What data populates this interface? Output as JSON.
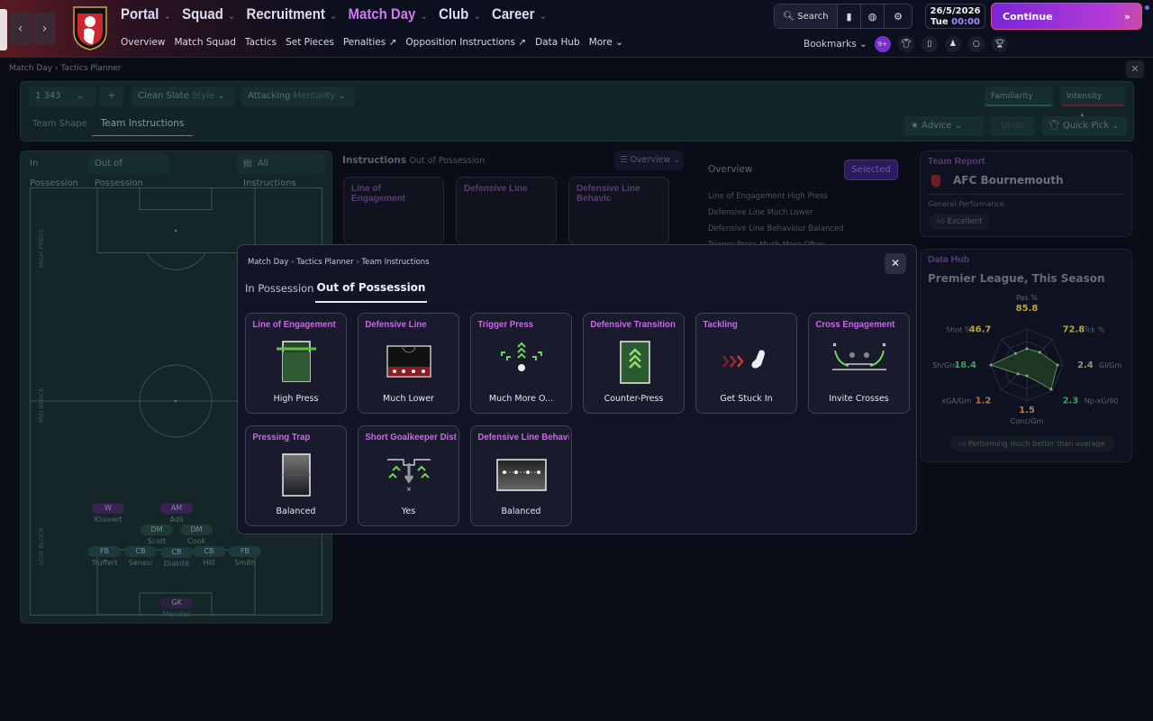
{
  "nav": {
    "main": [
      {
        "label": "Portal"
      },
      {
        "label": "Squad"
      },
      {
        "label": "Recruitment"
      },
      {
        "label": "Match Day",
        "active": true
      },
      {
        "label": "Club"
      },
      {
        "label": "Career"
      }
    ],
    "sub": [
      "Overview",
      "Match Squad",
      "Tactics",
      "Set Pieces",
      "Penalties",
      "Opposition Instructions",
      "Data Hub",
      "More"
    ],
    "search": "Search",
    "date": "26/5/2026",
    "day": "Tue",
    "time": "00:00",
    "continue": "Continue",
    "bookmarks": "Bookmarks",
    "badge": "9+",
    "accent": "#c86ae6"
  },
  "breadcrumb": [
    "Match Day",
    "Tactics Planner"
  ],
  "tactics": {
    "slot": "1",
    "formation": "343",
    "style_value": "Clean Slate",
    "style_label": "Style",
    "mentality_value": "Attacking",
    "mentality_label": "Mentality",
    "familiarity": "Familiarity",
    "intensity": "Intensity",
    "tabs": [
      "Team Shape",
      "Team Instructions"
    ],
    "advice": "Advice",
    "undo": "Undo",
    "quick_pick": "Quick Pick"
  },
  "pitch": {
    "tabs": [
      "In Possession",
      "Out of Possession"
    ],
    "all_instructions": "All Instructions",
    "zones": [
      "HIGH PRESS",
      "MID BLOCK",
      "LOW BLOCK"
    ],
    "players": [
      {
        "pos": "W",
        "name": "Kluivert"
      },
      {
        "pos": "AM",
        "name": "Adli"
      },
      {
        "pos": "DM",
        "name": "Scott"
      },
      {
        "pos": "DM",
        "name": "Cook"
      },
      {
        "pos": "FB",
        "name": "Truffert"
      },
      {
        "pos": "CB",
        "name": "Senesi"
      },
      {
        "pos": "CB",
        "name": "Diakité"
      },
      {
        "pos": "CB",
        "name": "Hill"
      },
      {
        "pos": "FB",
        "name": "Smith"
      },
      {
        "pos": "GK",
        "name": "Mandas"
      }
    ]
  },
  "instructions": {
    "title": "Instructions",
    "subtitle": "Out of Possession",
    "view": "Overview",
    "cards": [
      "Line of Engagement",
      "Defensive Line",
      "Defensive Line Behavic"
    ]
  },
  "overview": {
    "title": "Overview",
    "selected": "Selected",
    "rows": [
      [
        "Line of Engagement",
        "High Press"
      ],
      [
        "Defensive Line",
        "Much Lower"
      ],
      [
        "Defensive Line Behaviour",
        "Balanced"
      ],
      [
        "Trigger Press",
        "Much More Often"
      ]
    ]
  },
  "team_report": {
    "label": "Team Report",
    "club": "AFC Bournemouth",
    "perf_label": "General Performance",
    "perf_value": "Excellent"
  },
  "data_hub": {
    "label": "Data Hub",
    "title": "Premier League, This Season",
    "footer": "Performing much better than average"
  },
  "chart_data": {
    "type": "radar",
    "axes": [
      "Pas %",
      "Tck %",
      "Gl/Gm",
      "Np-xG/90",
      "Conc/Gm",
      "xGA/Gm",
      "Sh/Gm",
      "Shot %"
    ],
    "values": [
      "85.8",
      "72.8",
      "2.4",
      "2.3",
      "1.5",
      "1.2",
      "18.4",
      "46.7"
    ],
    "levels": [
      0.45,
      0.5,
      0.85,
      0.95,
      0.3,
      0.35,
      1.0,
      0.45
    ],
    "value_colors": [
      "#b5a44a",
      "#b5a44a",
      "#8a9a70",
      "#3f9e5e",
      "#b07a4a",
      "#b07a4a",
      "#3f9e5e",
      "#b5a44a"
    ]
  },
  "modal": {
    "breadcrumb": [
      "Match Day",
      "Tactics Planner",
      "Team Instructions"
    ],
    "tabs": [
      "In Possession",
      "Out of Possession"
    ],
    "cards": [
      {
        "title": "Line of Engagement",
        "value": "High Press",
        "icon": "line-of-engagement-icon"
      },
      {
        "title": "Defensive Line",
        "value": "Much Lower",
        "icon": "defensive-line-icon"
      },
      {
        "title": "Trigger Press",
        "value": "Much More O...",
        "icon": "trigger-press-icon"
      },
      {
        "title": "Defensive Transition",
        "value": "Counter-Press",
        "icon": "counter-press-icon"
      },
      {
        "title": "Tackling",
        "value": "Get Stuck In",
        "icon": "boot-icon"
      },
      {
        "title": "Cross Engagement",
        "value": "Invite Crosses",
        "icon": "cross-engagement-icon"
      },
      {
        "title": "Pressing Trap",
        "value": "Balanced",
        "icon": "pressing-trap-icon"
      },
      {
        "title": "Short Goalkeeper Distr",
        "value": "Yes",
        "icon": "goalkeeper-distribution-icon"
      },
      {
        "title": "Defensive Line Behavic",
        "value": "Balanced",
        "icon": "defensive-line-behaviour-icon"
      }
    ]
  }
}
